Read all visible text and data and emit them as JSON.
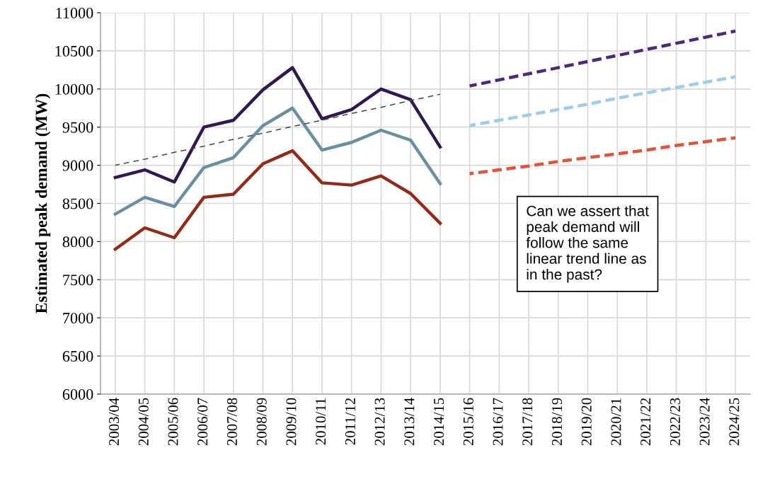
{
  "chart_data": {
    "type": "line",
    "ylabel": "Estimated peak demand (MW)",
    "categories": [
      "2003/04",
      "2004/05",
      "2005/06",
      "2006/07",
      "2007/08",
      "2008/09",
      "2009/10",
      "2010/11",
      "2011/12",
      "2012/13",
      "2013/14",
      "2014/15",
      "2015/16",
      "2016/17",
      "2017/18",
      "2018/19",
      "2019/20",
      "2020/21",
      "2021/22",
      "2022/23",
      "2023/24",
      "2024/25"
    ],
    "series": [
      {
        "color": "#2e1a4f",
        "line_style": "solid",
        "values": [
          8840,
          8940,
          8780,
          9500,
          9590,
          9990,
          10280,
          9610,
          9730,
          10000,
          9860,
          9240,
          null,
          null,
          null,
          null,
          null,
          null,
          null,
          null,
          null,
          null
        ]
      },
      {
        "color": "#6a8fa0",
        "line_style": "solid",
        "values": [
          8360,
          8580,
          8460,
          8970,
          9100,
          9520,
          9750,
          9200,
          9300,
          9460,
          9330,
          8760,
          null,
          null,
          null,
          null,
          null,
          null,
          null,
          null,
          null,
          null
        ]
      },
      {
        "color": "#922b1a",
        "line_style": "solid",
        "values": [
          7900,
          8180,
          8050,
          8580,
          8620,
          9020,
          9190,
          8770,
          8740,
          8860,
          8630,
          8240,
          null,
          null,
          null,
          null,
          null,
          null,
          null,
          null,
          null,
          null
        ]
      },
      {
        "color": "#3d4a52",
        "line_style": "dotted",
        "values": [
          9000,
          9080,
          9170,
          9250,
          9340,
          9420,
          9510,
          9590,
          9680,
          9760,
          9850,
          9930,
          null,
          null,
          null,
          null,
          null,
          null,
          null,
          null,
          null,
          null
        ]
      },
      {
        "color": "#4b2a7b",
        "line_style": "dashed",
        "values": [
          null,
          null,
          null,
          null,
          null,
          null,
          null,
          null,
          null,
          null,
          null,
          null,
          10040,
          10120,
          10200,
          10280,
          10360,
          10440,
          10520,
          10600,
          10680,
          10760
        ]
      },
      {
        "color": "#9ecde8",
        "line_style": "dashed",
        "values": [
          null,
          null,
          null,
          null,
          null,
          null,
          null,
          null,
          null,
          null,
          null,
          null,
          9520,
          9590,
          9660,
          9730,
          9800,
          9880,
          9950,
          10020,
          10090,
          10160
        ]
      },
      {
        "color": "#e0553a",
        "line_style": "dashed",
        "values": [
          null,
          null,
          null,
          null,
          null,
          null,
          null,
          null,
          null,
          null,
          null,
          null,
          8890,
          8940,
          8990,
          9050,
          9100,
          9150,
          9200,
          9260,
          9310,
          9360
        ]
      }
    ],
    "ylim": [
      6000,
      11000
    ],
    "yticks": [
      6000,
      6500,
      7000,
      7500,
      8000,
      8500,
      9000,
      9500,
      10000,
      10500,
      11000
    ],
    "grid": true,
    "annotations": [
      "Can we assert that\npeak demand will\nfollow the same\nlinear trend line as\nin the past?"
    ]
  }
}
